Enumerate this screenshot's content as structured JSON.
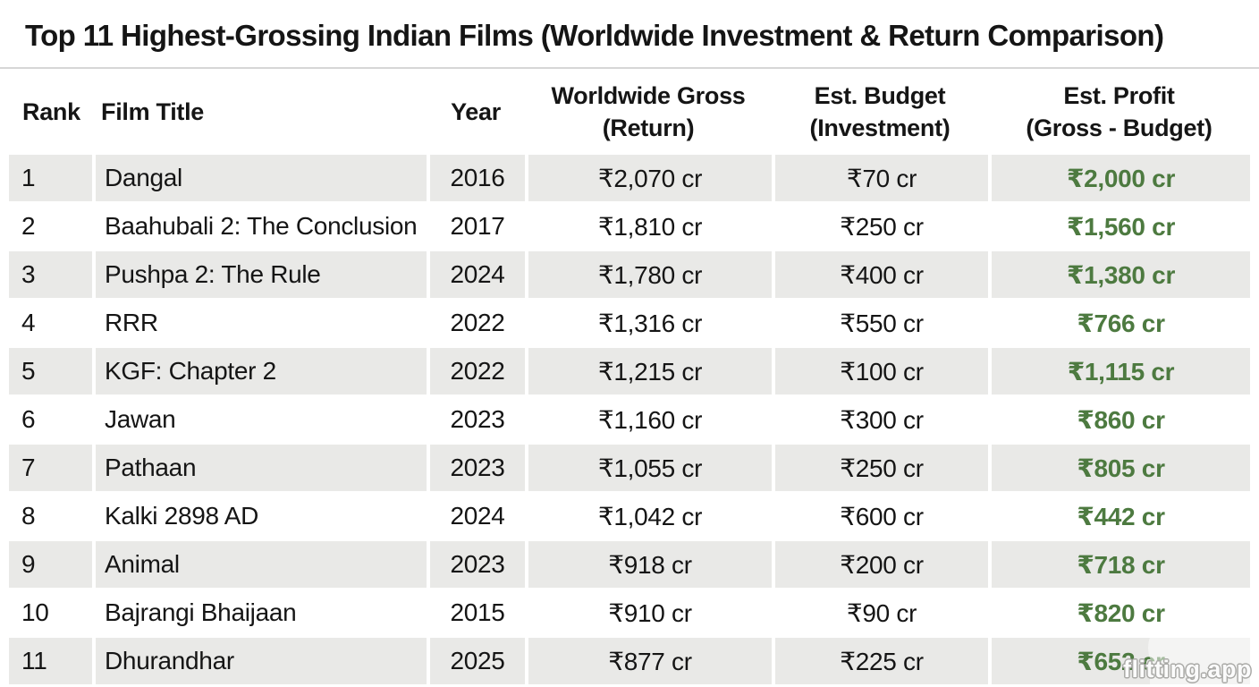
{
  "header": {
    "title": "Top 11 Highest-Grossing Indian Films (Worldwide Investment & Return Comparison)"
  },
  "table": {
    "headers": [
      {
        "line1": "Rank"
      },
      {
        "line1": "Film Title"
      },
      {
        "line1": "Year"
      },
      {
        "line1": "Worldwide Gross",
        "line2": "(Return)"
      },
      {
        "line1": "Est. Budget",
        "line2": "(Investment)"
      },
      {
        "line1": "Est. Profit",
        "line2": "(Gross - Budget)"
      }
    ],
    "rows": [
      {
        "rank": "1",
        "film": "Dangal",
        "year": "2016",
        "gross": "₹2,070 cr",
        "budget": "₹70 cr",
        "profit": "₹2,000 cr"
      },
      {
        "rank": "2",
        "film": "Baahubali 2: The Conclusion",
        "year": "2017",
        "gross": "₹1,810 cr",
        "budget": "₹250 cr",
        "profit": "₹1,560 cr"
      },
      {
        "rank": "3",
        "film": "Pushpa 2: The Rule",
        "year": "2024",
        "gross": "₹1,780 cr",
        "budget": "₹400 cr",
        "profit": "₹1,380 cr"
      },
      {
        "rank": "4",
        "film": "RRR",
        "year": "2022",
        "gross": "₹1,316 cr",
        "budget": "₹550 cr",
        "profit": "₹766 cr"
      },
      {
        "rank": "5",
        "film": "KGF: Chapter 2",
        "year": "2022",
        "gross": "₹1,215 cr",
        "budget": "₹100 cr",
        "profit": "₹1,115 cr"
      },
      {
        "rank": "6",
        "film": "Jawan",
        "year": "2023",
        "gross": "₹1,160 cr",
        "budget": "₹300 cr",
        "profit": "₹860 cr"
      },
      {
        "rank": "7",
        "film": "Pathaan",
        "year": "2023",
        "gross": "₹1,055 cr",
        "budget": "₹250 cr",
        "profit": "₹805 cr"
      },
      {
        "rank": "8",
        "film": "Kalki 2898 AD",
        "year": "2024",
        "gross": "₹1,042 cr",
        "budget": "₹600 cr",
        "profit": "₹442 cr"
      },
      {
        "rank": "9",
        "film": "Animal",
        "year": "2023",
        "gross": "₹918 cr",
        "budget": "₹200 cr",
        "profit": "₹718 cr"
      },
      {
        "rank": "10",
        "film": "Bajrangi Bhaijaan",
        "year": "2015",
        "gross": "₹910 cr",
        "budget": "₹90 cr",
        "profit": "₹820 cr"
      },
      {
        "rank": "11",
        "film": "Dhurandhar",
        "year": "2025",
        "gross": "₹877 cr",
        "budget": "₹225 cr",
        "profit": "₹652 cr"
      }
    ]
  },
  "watermark": {
    "label": "flitting.app"
  },
  "colors": {
    "profit_green": "#4d7a40",
    "row_alt": "#e9e9e7",
    "divider": "#d6d6d6",
    "ink": "#151515"
  },
  "chart_data": {
    "type": "table",
    "title": "Top 11 Highest-Grossing Indian Films (Worldwide Investment & Return Comparison)",
    "currency_unit": "INR crore (₹ cr)",
    "columns": [
      "Rank",
      "Film Title",
      "Year",
      "Worldwide Gross (Return)",
      "Est. Budget (Investment)",
      "Est. Profit (Gross - Budget)"
    ],
    "rows": [
      {
        "rank": 1,
        "film": "Dangal",
        "year": 2016,
        "gross_cr": 2070,
        "budget_cr": 70,
        "profit_cr": 2000
      },
      {
        "rank": 2,
        "film": "Baahubali 2: The Conclusion",
        "year": 2017,
        "gross_cr": 1810,
        "budget_cr": 250,
        "profit_cr": 1560
      },
      {
        "rank": 3,
        "film": "Pushpa 2: The Rule",
        "year": 2024,
        "gross_cr": 1780,
        "budget_cr": 400,
        "profit_cr": 1380
      },
      {
        "rank": 4,
        "film": "RRR",
        "year": 2022,
        "gross_cr": 1316,
        "budget_cr": 550,
        "profit_cr": 766
      },
      {
        "rank": 5,
        "film": "KGF: Chapter 2",
        "year": 2022,
        "gross_cr": 1215,
        "budget_cr": 100,
        "profit_cr": 1115
      },
      {
        "rank": 6,
        "film": "Jawan",
        "year": 2023,
        "gross_cr": 1160,
        "budget_cr": 300,
        "profit_cr": 860
      },
      {
        "rank": 7,
        "film": "Pathaan",
        "year": 2023,
        "gross_cr": 1055,
        "budget_cr": 250,
        "profit_cr": 805
      },
      {
        "rank": 8,
        "film": "Kalki 2898 AD",
        "year": 2024,
        "gross_cr": 1042,
        "budget_cr": 600,
        "profit_cr": 442
      },
      {
        "rank": 9,
        "film": "Animal",
        "year": 2023,
        "gross_cr": 918,
        "budget_cr": 200,
        "profit_cr": 718
      },
      {
        "rank": 10,
        "film": "Bajrangi Bhaijaan",
        "year": 2015,
        "gross_cr": 910,
        "budget_cr": 90,
        "profit_cr": 820
      },
      {
        "rank": 11,
        "film": "Dhurandhar",
        "year": 2025,
        "gross_cr": 877,
        "budget_cr": 225,
        "profit_cr": 652
      }
    ]
  }
}
